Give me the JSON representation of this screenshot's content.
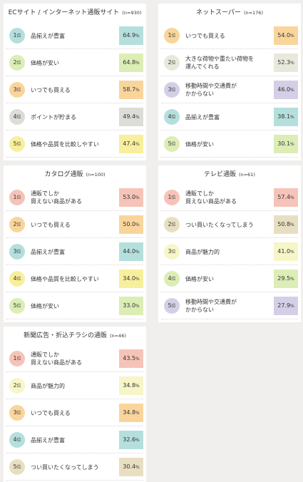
{
  "rank_suffix": "位",
  "percent_unit": "%",
  "colors": {
    "rank1": "#f8d3c2",
    "rank2": "#f5efbd",
    "rank3": "#f9d59c",
    "rank4": "#dcdcd8",
    "rank5": "#f7ef9c",
    "aqua": "#b4dfdc",
    "green": "#dcedb5",
    "lavender": "#d4cfe6",
    "salmon": "#f6c3b8",
    "yellow": "#f8eca0",
    "beige": "#e8dfc2",
    "paleyellow": "#f6f6c8",
    "grey": "#dcdcd8"
  },
  "chart_data": [
    {
      "type": "table",
      "title": "ECサイト / インターネット通販サイト",
      "n": "(n=930)",
      "items": [
        {
          "rank": "1",
          "label": "品揃えが豊富",
          "value": "64.9",
          "rank_color": "#b4dfdc",
          "value_color": "#b4dfdc"
        },
        {
          "rank": "2",
          "label": "価格が安い",
          "value": "64.8",
          "rank_color": "#dcedb5",
          "value_color": "#dcedb5"
        },
        {
          "rank": "3",
          "label": "いつでも買える",
          "value": "58.7",
          "rank_color": "#f9d59c",
          "value_color": "#f9d59c"
        },
        {
          "rank": "4",
          "label": "ポイントが貯まる",
          "value": "49.4",
          "rank_color": "#dcdcd8",
          "value_color": "#dcdcd8"
        },
        {
          "rank": "5",
          "label": "価格や品質を比較しやすい",
          "value": "47.4",
          "rank_color": "#f7ef9c",
          "value_color": "#f7ef9c"
        }
      ]
    },
    {
      "type": "table",
      "title": "ネットスーパー",
      "n": "(n=176)",
      "items": [
        {
          "rank": "1",
          "label": "いつでも買える",
          "value": "54.0",
          "rank_color": "#f9d59c",
          "value_color": "#f9d59c"
        },
        {
          "rank": "2",
          "label": "大きな荷物や重たい荷物を\n運んでくれる",
          "value": "52.3",
          "rank_color": "#e8e8dc",
          "value_color": "#e8e8dc"
        },
        {
          "rank": "3",
          "label": "移動時間や交通費が\nかからない",
          "value": "46.0",
          "rank_color": "#d4cfe6",
          "value_color": "#d4cfe6"
        },
        {
          "rank": "4",
          "label": "品揃えが豊富",
          "value": "38.1",
          "rank_color": "#b4dfdc",
          "value_color": "#b4dfdc"
        },
        {
          "rank": "5",
          "label": "価格が安い",
          "value": "30.1",
          "rank_color": "#dcedb5",
          "value_color": "#dcedb5"
        }
      ]
    },
    {
      "type": "table",
      "title": "カタログ通販",
      "n": "(n=100)",
      "items": [
        {
          "rank": "1",
          "label": "通販でしか\n買えない商品がある",
          "value": "53.0",
          "rank_color": "#f6c3b8",
          "value_color": "#f6c3b8"
        },
        {
          "rank": "2",
          "label": "いつでも買える",
          "value": "50.0",
          "rank_color": "#f9d59c",
          "value_color": "#f9d59c"
        },
        {
          "rank": "3",
          "label": "品揃えが豊富",
          "value": "44.0",
          "rank_color": "#b4dfdc",
          "value_color": "#b4dfdc"
        },
        {
          "rank": "4",
          "label": "価格や品質を比較しやすい",
          "value": "34.0",
          "rank_color": "#f7ef9c",
          "value_color": "#f7ef9c"
        },
        {
          "rank": "5",
          "label": "価格が安い",
          "value": "33.0",
          "rank_color": "#dcedb5",
          "value_color": "#dcedb5"
        }
      ]
    },
    {
      "type": "table",
      "title": "テレビ通販",
      "n": "(n=61)",
      "items": [
        {
          "rank": "1",
          "label": "通販でしか\n買えない商品がある",
          "value": "57.4",
          "rank_color": "#f6c3b8",
          "value_color": "#f6c3b8"
        },
        {
          "rank": "2",
          "label": "つい買いたくなってしまう",
          "value": "50.8",
          "rank_color": "#e8dfc2",
          "value_color": "#e8dfc2"
        },
        {
          "rank": "3",
          "label": "商品が魅力的",
          "value": "41.0",
          "rank_color": "#f6f6c8",
          "value_color": "#f6f6c8"
        },
        {
          "rank": "4",
          "label": "価格が安い",
          "value": "29.5",
          "rank_color": "#dcedb5",
          "value_color": "#dcedb5"
        },
        {
          "rank": "5",
          "label": "移動時間や交通費が\nかからない",
          "value": "27.9",
          "rank_color": "#d4cfe6",
          "value_color": "#d4cfe6"
        }
      ]
    },
    {
      "type": "table",
      "title": "新聞広告・折込チラシの通販",
      "n": "(n=46)",
      "items": [
        {
          "rank": "1",
          "label": "通販でしか\n買えない商品がある",
          "value": "43.5",
          "rank_color": "#f6c3b8",
          "value_color": "#f6c3b8"
        },
        {
          "rank": "2",
          "label": "商品が魅力的",
          "value": "34.8",
          "rank_color": "#f6f6c8",
          "value_color": "#f6f6c8"
        },
        {
          "rank": "3",
          "label": "いつでも買える",
          "value": "34.8",
          "rank_color": "#f9d59c",
          "value_color": "#f9d59c"
        },
        {
          "rank": "4",
          "label": "品揃えが豊富",
          "value": "32.6",
          "rank_color": "#b4dfdc",
          "value_color": "#b4dfdc"
        },
        {
          "rank": "5",
          "label": "つい買いたくなってしまう",
          "value": "30.4",
          "rank_color": "#e8dfc2",
          "value_color": "#e8dfc2"
        }
      ]
    }
  ]
}
